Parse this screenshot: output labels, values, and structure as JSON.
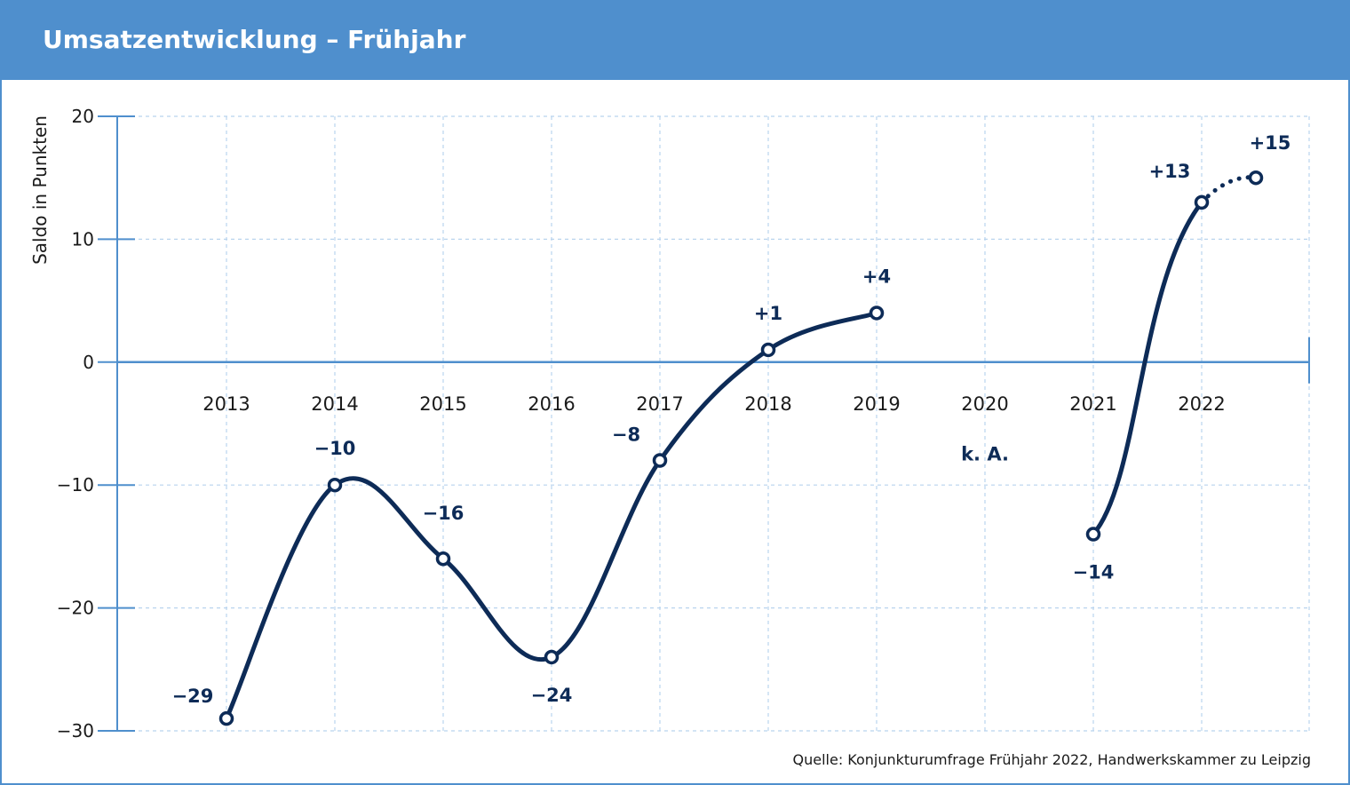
{
  "header": {
    "title": "Umsatzentwicklung – Frühjahr"
  },
  "source": "Quelle: Konjunkturumfrage Frühjahr 2022, Handwerkskammer zu Leipzig",
  "colors": {
    "header": "#4f8fcd",
    "axis": "#4f8fcd",
    "grid": "#b9d4ee",
    "line": "#0d2b57",
    "text": "#1a1a1a",
    "label": "#0d2b57"
  },
  "chart_data": {
    "type": "line",
    "ylabel": "Saldo in Punkten",
    "ylim": [
      -30,
      20
    ],
    "yticks": [
      20,
      10,
      0,
      -10,
      -20,
      -30
    ],
    "ytick_labels": [
      "20",
      "10",
      "0",
      "−10",
      "−20",
      "−30"
    ],
    "categories": [
      "2013",
      "2014",
      "2015",
      "2016",
      "2017",
      "2018",
      "2019",
      "2020",
      "2021",
      "2022"
    ],
    "segments": [
      {
        "style": "solid",
        "points": [
          {
            "x": "2013",
            "y": -29,
            "label": "−29"
          },
          {
            "x": "2014",
            "y": -10,
            "label": "−10"
          },
          {
            "x": "2015",
            "y": -16,
            "label": "−16"
          },
          {
            "x": "2016",
            "y": -24,
            "label": "−24"
          },
          {
            "x": "2017",
            "y": -8,
            "label": "−8"
          },
          {
            "x": "2018",
            "y": 1,
            "label": "+1"
          },
          {
            "x": "2019",
            "y": 4,
            "label": "+4"
          }
        ]
      },
      {
        "style": "solid",
        "points": [
          {
            "x": "2021",
            "y": -14,
            "label": "−14"
          },
          {
            "x": "2022",
            "y": 13,
            "label": "+13"
          }
        ]
      },
      {
        "style": "dotted",
        "points": [
          {
            "x": "2022",
            "y": 13
          },
          {
            "x": "2022.5",
            "y": 15,
            "label": "+15"
          }
        ]
      }
    ],
    "annotations": [
      {
        "x": "2020",
        "y": -8,
        "text": "k. A."
      }
    ]
  }
}
